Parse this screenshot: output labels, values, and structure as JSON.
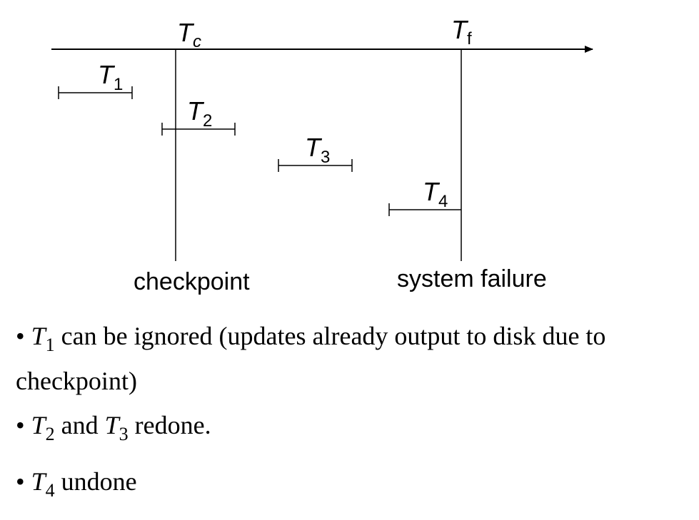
{
  "timeline": {
    "checkpoint_marker": {
      "symbol": "T",
      "sub": "c"
    },
    "failure_marker": {
      "symbol": "T",
      "sub": "f"
    },
    "checkpoint_label": "checkpoint",
    "failure_label": "system failure"
  },
  "transactions": [
    {
      "symbol": "T",
      "sub": "1"
    },
    {
      "symbol": "T",
      "sub": "2"
    },
    {
      "symbol": "T",
      "sub": "3"
    },
    {
      "symbol": "T",
      "sub": "4"
    }
  ],
  "bullets": [
    {
      "marker": "•",
      "t_symbol": "T",
      "t_sub": "1",
      "text": "can be ignored (updates already output to disk due to checkpoint)"
    },
    {
      "marker": "•",
      "t_symbol": "T",
      "t_sub": "2",
      "mid": "and",
      "t2_symbol": "T",
      "t2_sub": "3",
      "text": "redone."
    },
    {
      "marker": "•",
      "t_symbol": "T",
      "t_sub": "4",
      "text": "undone"
    }
  ],
  "colors": {
    "ink": "#000000",
    "background": "#ffffff"
  }
}
